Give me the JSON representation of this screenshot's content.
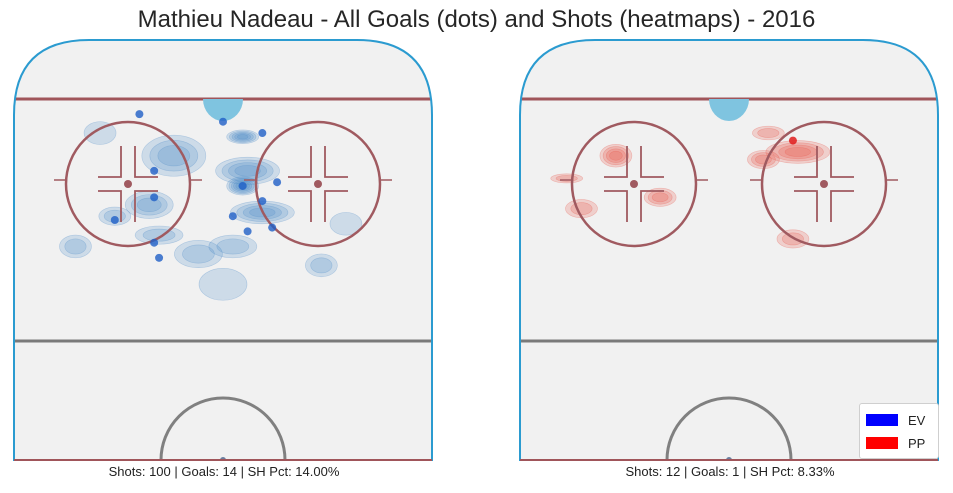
{
  "chart_data": {
    "type": "scatter",
    "title": "Mathieu Nadeau - All Goals (dots) and Shots (heatmaps) - 2016",
    "legend": {
      "placement": "bottom-right",
      "entries": [
        {
          "label": "EV",
          "color": "#0000ff"
        },
        {
          "label": "PP",
          "color": "#ff0000"
        }
      ]
    },
    "panels": [
      {
        "strength": "EV",
        "color": "#1f5fc7",
        "heat_color": "#4f8cc9",
        "caption": "Shots: 100 | Goals: 14 | SH Pct: 14.00%",
        "shots": 100,
        "goals_count": 14,
        "sh_pct": 14.0,
        "goals": [
          {
            "x": 58,
            "y": 2
          },
          {
            "x": 54,
            "y": 5
          },
          {
            "x": 62,
            "y": 8
          },
          {
            "x": 80,
            "y": 8
          },
          {
            "x": 66,
            "y": 4
          },
          {
            "x": 55,
            "y": 10
          },
          {
            "x": 51,
            "y": -14
          },
          {
            "x": 85,
            "y": -17
          },
          {
            "x": 67,
            "y": 11
          },
          {
            "x": 47,
            "y": -13
          },
          {
            "x": 63,
            "y": -14
          },
          {
            "x": 57,
            "y": -22
          },
          {
            "x": 70,
            "y": -14
          },
          {
            "x": 83,
            "y": 0
          }
        ]
      },
      {
        "strength": "PP",
        "color": "#e01010",
        "heat_color": "#e8554b",
        "caption": "Shots: 12 | Goals: 1 | SH Pct: 8.33%",
        "shots": 12,
        "goals_count": 1,
        "sh_pct": 8.33,
        "goals": [
          {
            "x": 78,
            "y": 13
          }
        ]
      }
    ]
  }
}
